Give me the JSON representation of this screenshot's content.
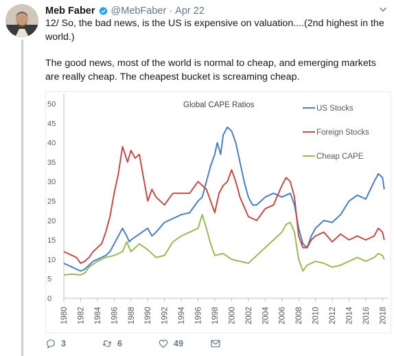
{
  "tweet": {
    "author_name": "Meb Faber",
    "author_handle": "@MebFaber",
    "separator": "·",
    "date": "Apr 22",
    "paragraphs": [
      "12/ So, the bad news, is the US is expensive on valuation....(2nd highest in the world.)",
      "The good news, most of the world is normal to cheap, and emerging markets are really cheap.  The cheapest bucket is screaming cheap."
    ]
  },
  "actions": {
    "replies": "3",
    "retweets": "6",
    "likes": "49"
  },
  "icons": {
    "verified": "verified-badge-icon",
    "caret": "chevron-down-icon",
    "reply": "reply-icon",
    "retweet": "retweet-icon",
    "like": "heart-icon",
    "message": "envelope-icon"
  },
  "colors": {
    "verified": "#1da1f2",
    "icon_gray": "#657786",
    "us": "#4a7ebb",
    "foreign": "#be4b48",
    "cheap": "#98b954"
  },
  "chart_data": {
    "type": "line",
    "title": "Global CAPE Ratios",
    "xlabel": "",
    "ylabel": "",
    "xlim": [
      1980,
      2018.3
    ],
    "ylim": [
      0,
      50
    ],
    "yticks": [
      "0",
      "5",
      "10",
      "15",
      "20",
      "25",
      "30",
      "35",
      "40",
      "45",
      "50"
    ],
    "xticks": [
      "1980",
      "1982",
      "1984",
      "1986",
      "1988",
      "1990",
      "1992",
      "1994",
      "1996",
      "1998",
      "2000",
      "2002",
      "2004",
      "2006",
      "2008",
      "2010",
      "2012",
      "2014",
      "2016",
      "2018"
    ],
    "grid": false,
    "legend": "top-right",
    "series": [
      {
        "name": "US Stocks",
        "x": [
          1980,
          1980.5,
          1981,
          1981.5,
          1982,
          1982.5,
          1983,
          1983.5,
          1984,
          1984.5,
          1985,
          1985.5,
          1986,
          1986.5,
          1987,
          1987.5,
          1987.8,
          1988,
          1989,
          1990,
          1990.5,
          1991,
          1992,
          1993,
          1994,
          1995,
          1996,
          1996.5,
          1997,
          1997.5,
          1998,
          1998.3,
          1998.7,
          1999,
          1999.5,
          2000,
          2000.5,
          2001,
          2001.5,
          2002,
          2002.5,
          2003,
          2004,
          2005,
          2006,
          2007,
          2007.5,
          2008,
          2008.5,
          2009,
          2009.5,
          2010,
          2011,
          2012,
          2013,
          2014,
          2015,
          2016,
          2017,
          2017.5,
          2018,
          2018.2
        ],
        "values": [
          9,
          8.5,
          8,
          7.5,
          7,
          7.5,
          8.5,
          9.5,
          10,
          10.5,
          11,
          12,
          14,
          16,
          18,
          16,
          14.5,
          15,
          16.5,
          18,
          16,
          17,
          19.5,
          20.5,
          21.5,
          22,
          25,
          26,
          30,
          34,
          37,
          40,
          37,
          42,
          44,
          43,
          40,
          35,
          30,
          26,
          24,
          24,
          26,
          27,
          26,
          27,
          24,
          18,
          14,
          13,
          16,
          18,
          20,
          19.5,
          21.5,
          25,
          26.5,
          25.5,
          30,
          32,
          31,
          28
        ]
      },
      {
        "name": "Foreign Stocks",
        "x": [
          1980,
          1980.5,
          1981,
          1981.5,
          1982,
          1982.5,
          1983,
          1983.5,
          1984,
          1984.5,
          1985,
          1985.5,
          1986,
          1986.5,
          1987,
          1987.3,
          1987.6,
          1988,
          1988.5,
          1989,
          1989.5,
          1990,
          1990.5,
          1991,
          1992,
          1993,
          1994,
          1995,
          1996,
          1997,
          1998,
          1998.5,
          1999,
          1999.5,
          2000,
          2000.5,
          2001,
          2002,
          2003,
          2004,
          2005,
          2006,
          2006.5,
          2007,
          2007.5,
          2008,
          2008.5,
          2009,
          2009.5,
          2010,
          2011,
          2012,
          2013,
          2014,
          2015,
          2016,
          2017,
          2017.5,
          2018,
          2018.2
        ],
        "values": [
          12,
          11.5,
          11,
          10.5,
          9,
          9.5,
          10.5,
          12,
          13,
          14,
          17,
          21,
          27,
          32,
          39,
          37,
          35,
          38,
          36,
          37,
          31,
          25,
          28,
          26,
          24,
          27,
          27,
          27,
          30,
          28,
          22,
          27,
          29,
          30,
          33,
          30,
          26,
          21,
          20,
          23,
          24,
          29,
          31,
          30,
          26,
          16,
          13,
          13,
          15,
          16,
          17,
          14.5,
          16.5,
          15,
          16,
          15,
          16,
          18,
          17,
          15
        ]
      },
      {
        "name": "Cheap CAPE",
        "x": [
          1980,
          1981,
          1982,
          1982.5,
          1983,
          1984,
          1985,
          1986,
          1987,
          1987.5,
          1988,
          1989,
          1990,
          1991,
          1992,
          1993,
          1994,
          1995,
          1996,
          1996.5,
          1997,
          1997.5,
          1998,
          1999,
          2000,
          2001,
          2002,
          2003,
          2004,
          2005,
          2006,
          2006.5,
          2007,
          2007.5,
          2008,
          2008.5,
          2009,
          2010,
          2011,
          2012,
          2013,
          2014,
          2015,
          2016,
          2017,
          2017.5,
          2018,
          2018.2
        ],
        "values": [
          6,
          6.2,
          6,
          6.5,
          8,
          9.5,
          10.5,
          11,
          12,
          14.5,
          12,
          14,
          12.5,
          10.5,
          11,
          14.5,
          16,
          17,
          18,
          21.5,
          18,
          14,
          11,
          11.5,
          10,
          9.5,
          9,
          11,
          13,
          15,
          17,
          19,
          19.5,
          17,
          10,
          7,
          8.5,
          9.5,
          9,
          8,
          8.5,
          9.5,
          10.5,
          9.5,
          10.5,
          11.5,
          11,
          10
        ]
      }
    ]
  }
}
